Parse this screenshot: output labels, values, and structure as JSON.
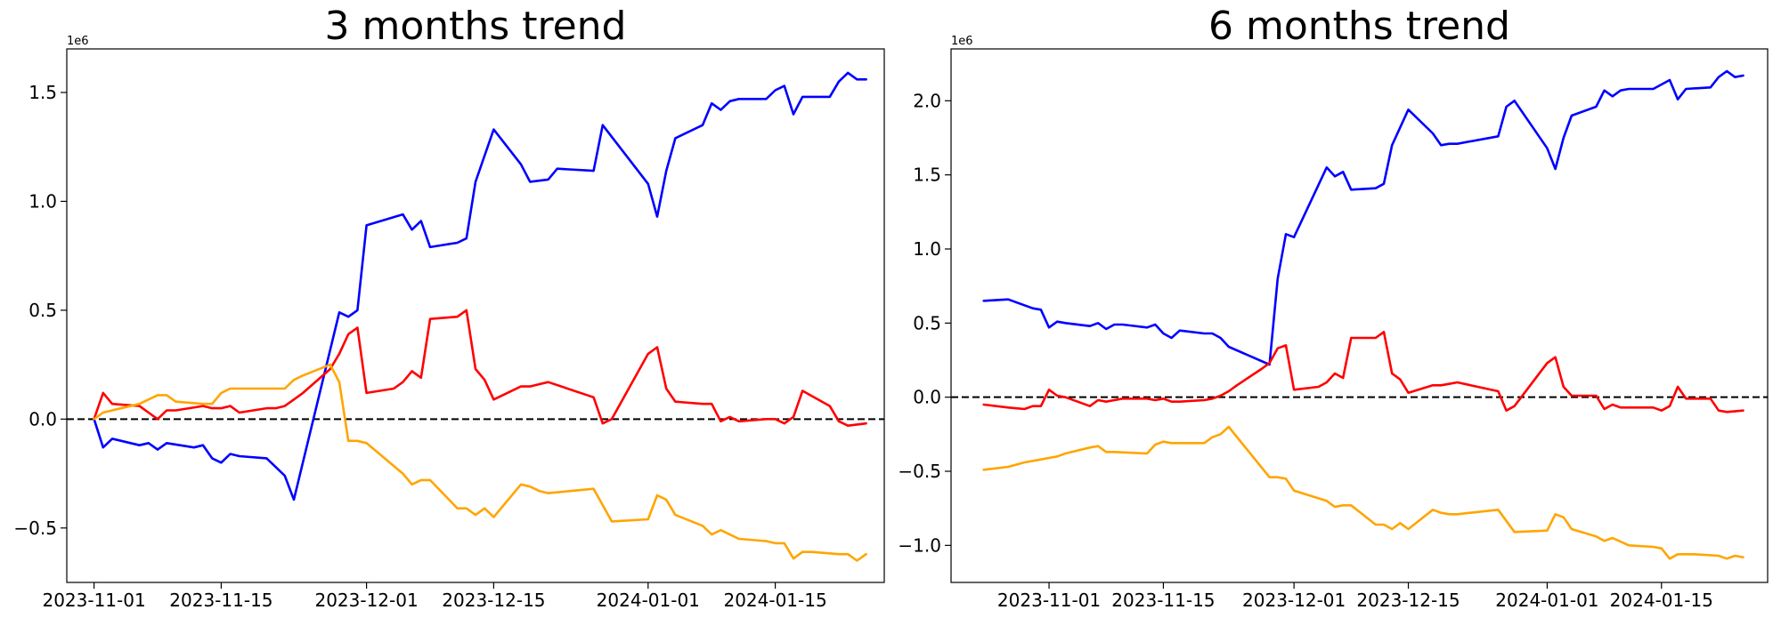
{
  "chart_data": [
    {
      "type": "line",
      "title": "3 months trend",
      "xlabel": "",
      "ylabel": "",
      "scale_label": "1e6",
      "x_ticks": [
        "2023-11-01",
        "2023-11-15",
        "2023-12-01",
        "2023-12-15",
        "2024-01-01",
        "2024-01-15"
      ],
      "y_ticks": [
        -0.5,
        0.0,
        0.5,
        1.0,
        1.5
      ],
      "y_tick_labels": [
        "−0.5",
        "0.0",
        "0.5",
        "1.0",
        "1.5"
      ],
      "xlim": [
        "2023-10-29",
        "2024-01-27"
      ],
      "ylim": [
        -0.75,
        1.7
      ],
      "y_scale": 1000000,
      "reference_line": 0,
      "grid": false,
      "series": [
        {
          "color": "#0000ff",
          "x": [
            "2023-11-01",
            "2023-11-02",
            "2023-11-03",
            "2023-11-06",
            "2023-11-07",
            "2023-11-08",
            "2023-11-09",
            "2023-11-12",
            "2023-11-13",
            "2023-11-14",
            "2023-11-15",
            "2023-11-16",
            "2023-11-17",
            "2023-11-20",
            "2023-11-21",
            "2023-11-22",
            "2023-11-23",
            "2023-11-28",
            "2023-11-29",
            "2023-11-30",
            "2023-12-01",
            "2023-12-05",
            "2023-12-06",
            "2023-12-07",
            "2023-12-08",
            "2023-12-11",
            "2023-12-12",
            "2023-12-13",
            "2023-12-15",
            "2023-12-18",
            "2023-12-19",
            "2023-12-21",
            "2023-12-22",
            "2023-12-26",
            "2023-12-27",
            "2024-01-01",
            "2024-01-02",
            "2024-01-03",
            "2024-01-04",
            "2024-01-07",
            "2024-01-08",
            "2024-01-09",
            "2024-01-10",
            "2024-01-11",
            "2024-01-14",
            "2024-01-15",
            "2024-01-16",
            "2024-01-17",
            "2024-01-18",
            "2024-01-21",
            "2024-01-22",
            "2024-01-23",
            "2024-01-24",
            "2024-01-25"
          ],
          "y": [
            0.0,
            -0.13,
            -0.09,
            -0.12,
            -0.11,
            -0.14,
            -0.11,
            -0.13,
            -0.12,
            -0.18,
            -0.2,
            -0.16,
            -0.17,
            -0.18,
            -0.22,
            -0.26,
            -0.37,
            0.49,
            0.47,
            0.5,
            0.89,
            0.94,
            0.87,
            0.91,
            0.79,
            0.81,
            0.83,
            1.09,
            1.33,
            1.17,
            1.09,
            1.1,
            1.15,
            1.14,
            1.35,
            1.08,
            0.93,
            1.14,
            1.29,
            1.35,
            1.45,
            1.42,
            1.46,
            1.47,
            1.47,
            1.51,
            1.53,
            1.4,
            1.48,
            1.48,
            1.55,
            1.59,
            1.56,
            1.56
          ]
        },
        {
          "color": "#ff0000",
          "x": [
            "2023-11-01",
            "2023-11-02",
            "2023-11-03",
            "2023-11-06",
            "2023-11-07",
            "2023-11-08",
            "2023-11-09",
            "2023-11-10",
            "2023-11-13",
            "2023-11-14",
            "2023-11-15",
            "2023-11-16",
            "2023-11-17",
            "2023-11-20",
            "2023-11-21",
            "2023-11-22",
            "2023-11-23",
            "2023-11-24",
            "2023-11-27",
            "2023-11-28",
            "2023-11-29",
            "2023-11-30",
            "2023-12-01",
            "2023-12-04",
            "2023-12-05",
            "2023-12-06",
            "2023-12-07",
            "2023-12-08",
            "2023-12-11",
            "2023-12-12",
            "2023-12-13",
            "2023-12-14",
            "2023-12-15",
            "2023-12-18",
            "2023-12-19",
            "2023-12-20",
            "2023-12-21",
            "2023-12-26",
            "2023-12-27",
            "2023-12-28",
            "2024-01-01",
            "2024-01-02",
            "2024-01-03",
            "2024-01-04",
            "2024-01-07",
            "2024-01-08",
            "2024-01-09",
            "2024-01-10",
            "2024-01-11",
            "2024-01-14",
            "2024-01-15",
            "2024-01-16",
            "2024-01-17",
            "2024-01-18",
            "2024-01-21",
            "2024-01-22",
            "2024-01-23",
            "2024-01-25"
          ],
          "y": [
            0.0,
            0.12,
            0.07,
            0.06,
            0.03,
            0.0,
            0.04,
            0.04,
            0.06,
            0.05,
            0.05,
            0.06,
            0.03,
            0.05,
            0.05,
            0.06,
            0.09,
            0.12,
            0.23,
            0.3,
            0.39,
            0.42,
            0.12,
            0.14,
            0.17,
            0.22,
            0.19,
            0.46,
            0.47,
            0.5,
            0.23,
            0.18,
            0.09,
            0.15,
            0.15,
            0.16,
            0.17,
            0.1,
            -0.02,
            0.0,
            0.3,
            0.33,
            0.14,
            0.08,
            0.07,
            0.07,
            -0.01,
            0.01,
            -0.01,
            0.0,
            0.0,
            -0.02,
            0.01,
            0.13,
            0.06,
            -0.01,
            -0.03,
            -0.02
          ]
        },
        {
          "color": "#ffa500",
          "x": [
            "2023-11-01",
            "2023-11-02",
            "2023-11-03",
            "2023-11-06",
            "2023-11-07",
            "2023-11-08",
            "2023-11-09",
            "2023-11-10",
            "2023-11-13",
            "2023-11-14",
            "2023-11-15",
            "2023-11-16",
            "2023-11-17",
            "2023-11-22",
            "2023-11-23",
            "2023-11-24",
            "2023-11-27",
            "2023-11-28",
            "2023-11-29",
            "2023-11-30",
            "2023-12-01",
            "2023-12-05",
            "2023-12-06",
            "2023-12-07",
            "2023-12-08",
            "2023-12-11",
            "2023-12-12",
            "2023-12-13",
            "2023-12-14",
            "2023-12-15",
            "2023-12-18",
            "2023-12-19",
            "2023-12-20",
            "2023-12-21",
            "2023-12-26",
            "2023-12-28",
            "2024-01-01",
            "2024-01-02",
            "2024-01-03",
            "2024-01-04",
            "2024-01-07",
            "2024-01-08",
            "2024-01-09",
            "2024-01-11",
            "2024-01-14",
            "2024-01-15",
            "2024-01-16",
            "2024-01-17",
            "2024-01-18",
            "2024-01-19",
            "2024-01-22",
            "2024-01-23",
            "2024-01-24",
            "2024-01-25"
          ],
          "y": [
            0.0,
            0.03,
            0.04,
            0.07,
            0.09,
            0.11,
            0.11,
            0.08,
            0.07,
            0.07,
            0.12,
            0.14,
            0.14,
            0.14,
            0.18,
            0.2,
            0.25,
            0.17,
            -0.1,
            -0.1,
            -0.11,
            -0.25,
            -0.3,
            -0.28,
            -0.28,
            -0.41,
            -0.41,
            -0.44,
            -0.41,
            -0.45,
            -0.3,
            -0.31,
            -0.33,
            -0.34,
            -0.32,
            -0.47,
            -0.46,
            -0.35,
            -0.37,
            -0.44,
            -0.49,
            -0.53,
            -0.51,
            -0.55,
            -0.56,
            -0.57,
            -0.57,
            -0.64,
            -0.61,
            -0.61,
            -0.62,
            -0.62,
            -0.65,
            -0.62
          ]
        }
      ]
    },
    {
      "type": "line",
      "title": "6 months trend",
      "xlabel": "",
      "ylabel": "",
      "scale_label": "1e6",
      "x_ticks": [
        "2023-11-01",
        "2023-11-15",
        "2023-12-01",
        "2023-12-15",
        "2024-01-01",
        "2024-01-15"
      ],
      "y_ticks": [
        -1.0,
        -0.5,
        0.0,
        0.5,
        1.0,
        1.5,
        2.0
      ],
      "y_tick_labels": [
        "−1.0",
        "−0.5",
        "0.0",
        "0.5",
        "1.0",
        "1.5",
        "2.0"
      ],
      "xlim": [
        "2023-10-20",
        "2024-01-28"
      ],
      "ylim": [
        -1.25,
        2.35
      ],
      "y_scale": 1000000,
      "reference_line": 0,
      "grid": false,
      "series": [
        {
          "color": "#0000ff",
          "x": [
            "2023-10-24",
            "2023-10-27",
            "2023-10-30",
            "2023-10-31",
            "2023-11-01",
            "2023-11-02",
            "2023-11-03",
            "2023-11-06",
            "2023-11-07",
            "2023-11-08",
            "2023-11-09",
            "2023-11-10",
            "2023-11-13",
            "2023-11-14",
            "2023-11-15",
            "2023-11-16",
            "2023-11-17",
            "2023-11-20",
            "2023-11-21",
            "2023-11-22",
            "2023-11-23",
            "2023-11-28",
            "2023-11-29",
            "2023-11-30",
            "2023-12-01",
            "2023-12-05",
            "2023-12-06",
            "2023-12-07",
            "2023-12-08",
            "2023-12-11",
            "2023-12-12",
            "2023-12-13",
            "2023-12-15",
            "2023-12-18",
            "2023-12-19",
            "2023-12-20",
            "2023-12-21",
            "2023-12-26",
            "2023-12-27",
            "2023-12-28",
            "2024-01-01",
            "2024-01-02",
            "2024-01-03",
            "2024-01-04",
            "2024-01-07",
            "2024-01-08",
            "2024-01-09",
            "2024-01-10",
            "2024-01-11",
            "2024-01-14",
            "2024-01-15",
            "2024-01-16",
            "2024-01-17",
            "2024-01-18",
            "2024-01-21",
            "2024-01-22",
            "2024-01-23",
            "2024-01-24",
            "2024-01-25"
          ],
          "y": [
            0.65,
            0.66,
            0.6,
            0.59,
            0.47,
            0.51,
            0.5,
            0.48,
            0.5,
            0.46,
            0.49,
            0.49,
            0.47,
            0.49,
            0.43,
            0.4,
            0.45,
            0.43,
            0.43,
            0.4,
            0.34,
            0.22,
            0.8,
            1.1,
            1.08,
            1.55,
            1.49,
            1.52,
            1.4,
            1.41,
            1.44,
            1.7,
            1.94,
            1.78,
            1.7,
            1.71,
            1.71,
            1.76,
            1.96,
            2.0,
            1.68,
            1.54,
            1.75,
            1.9,
            1.96,
            2.07,
            2.03,
            2.07,
            2.08,
            2.08,
            2.11,
            2.14,
            2.01,
            2.08,
            2.09,
            2.16,
            2.2,
            2.16,
            2.17
          ]
        },
        {
          "color": "#ff0000",
          "x": [
            "2023-10-24",
            "2023-10-27",
            "2023-10-29",
            "2023-10-30",
            "2023-10-31",
            "2023-11-01",
            "2023-11-02",
            "2023-11-03",
            "2023-11-06",
            "2023-11-07",
            "2023-11-08",
            "2023-11-09",
            "2023-11-10",
            "2023-11-13",
            "2023-11-14",
            "2023-11-15",
            "2023-11-16",
            "2023-11-17",
            "2023-11-20",
            "2023-11-21",
            "2023-11-22",
            "2023-11-23",
            "2023-11-24",
            "2023-11-27",
            "2023-11-28",
            "2023-11-29",
            "2023-11-30",
            "2023-12-01",
            "2023-12-04",
            "2023-12-05",
            "2023-12-06",
            "2023-12-07",
            "2023-12-08",
            "2023-12-11",
            "2023-12-12",
            "2023-12-13",
            "2023-12-14",
            "2023-12-15",
            "2023-12-18",
            "2023-12-19",
            "2023-12-20",
            "2023-12-21",
            "2023-12-26",
            "2023-12-27",
            "2023-12-28",
            "2024-01-01",
            "2024-01-02",
            "2024-01-03",
            "2024-01-04",
            "2024-01-07",
            "2024-01-08",
            "2024-01-09",
            "2024-01-10",
            "2024-01-11",
            "2024-01-14",
            "2024-01-15",
            "2024-01-16",
            "2024-01-17",
            "2024-01-18",
            "2024-01-21",
            "2024-01-22",
            "2024-01-23",
            "2024-01-25"
          ],
          "y": [
            -0.05,
            -0.07,
            -0.08,
            -0.06,
            -0.06,
            0.05,
            0.01,
            0.0,
            -0.06,
            -0.02,
            -0.03,
            -0.02,
            -0.01,
            -0.01,
            -0.02,
            -0.01,
            -0.03,
            -0.03,
            -0.02,
            -0.01,
            0.01,
            0.04,
            0.08,
            0.19,
            0.23,
            0.33,
            0.35,
            0.05,
            0.07,
            0.1,
            0.16,
            0.13,
            0.4,
            0.4,
            0.44,
            0.16,
            0.12,
            0.03,
            0.08,
            0.08,
            0.09,
            0.1,
            0.04,
            -0.09,
            -0.06,
            0.23,
            0.27,
            0.07,
            0.01,
            0.01,
            -0.08,
            -0.05,
            -0.07,
            -0.07,
            -0.07,
            -0.09,
            -0.06,
            0.07,
            -0.01,
            -0.01,
            -0.09,
            -0.1,
            -0.09
          ]
        },
        {
          "color": "#ffa500",
          "x": [
            "2023-10-24",
            "2023-10-27",
            "2023-10-29",
            "2023-10-31",
            "2023-11-01",
            "2023-11-02",
            "2023-11-03",
            "2023-11-06",
            "2023-11-07",
            "2023-11-08",
            "2023-11-09",
            "2023-11-13",
            "2023-11-14",
            "2023-11-15",
            "2023-11-16",
            "2023-11-20",
            "2023-11-21",
            "2023-11-22",
            "2023-11-23",
            "2023-11-28",
            "2023-11-29",
            "2023-11-30",
            "2023-12-01",
            "2023-12-05",
            "2023-12-06",
            "2023-12-07",
            "2023-12-08",
            "2023-12-11",
            "2023-12-12",
            "2023-12-13",
            "2023-12-14",
            "2023-12-15",
            "2023-12-18",
            "2023-12-19",
            "2023-12-20",
            "2023-12-21",
            "2023-12-26",
            "2023-12-28",
            "2024-01-01",
            "2024-01-02",
            "2024-01-03",
            "2024-01-04",
            "2024-01-07",
            "2024-01-08",
            "2024-01-09",
            "2024-01-11",
            "2024-01-14",
            "2024-01-15",
            "2024-01-16",
            "2024-01-17",
            "2024-01-18",
            "2024-01-19",
            "2024-01-22",
            "2024-01-23",
            "2024-01-24",
            "2024-01-25"
          ],
          "y": [
            -0.49,
            -0.47,
            -0.44,
            -0.42,
            -0.41,
            -0.4,
            -0.38,
            -0.34,
            -0.33,
            -0.37,
            -0.37,
            -0.38,
            -0.32,
            -0.3,
            -0.31,
            -0.31,
            -0.27,
            -0.25,
            -0.2,
            -0.54,
            -0.54,
            -0.55,
            -0.63,
            -0.7,
            -0.74,
            -0.73,
            -0.73,
            -0.86,
            -0.86,
            -0.89,
            -0.85,
            -0.89,
            -0.76,
            -0.78,
            -0.79,
            -0.79,
            -0.76,
            -0.91,
            -0.9,
            -0.79,
            -0.81,
            -0.89,
            -0.94,
            -0.97,
            -0.95,
            -1.0,
            -1.01,
            -1.02,
            -1.09,
            -1.06,
            -1.06,
            -1.06,
            -1.07,
            -1.09,
            -1.07,
            -1.08
          ]
        }
      ]
    }
  ]
}
